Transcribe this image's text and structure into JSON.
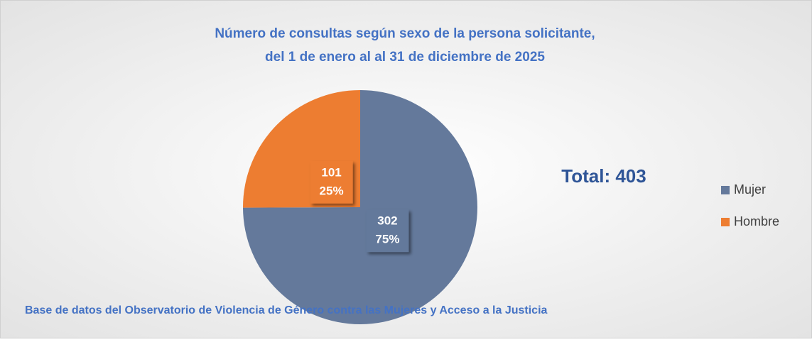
{
  "chart_data": {
    "type": "pie",
    "title": [
      "Número de consultas según sexo de la persona solicitante,",
      "del 1 de enero al al 31 de diciembre de 2025"
    ],
    "categories": [
      "Mujer",
      "Hombre"
    ],
    "values": [
      302,
      101
    ],
    "percentages": [
      75,
      25
    ],
    "percentage_labels": [
      "75%",
      "25%"
    ],
    "colors": [
      "#64799b",
      "#ed7d31"
    ],
    "annotation": "Total: 403",
    "source": "Base de datos del Observatorio de Violencia de Género contra las Mujeres y Acceso a la Justicia",
    "legend": "right"
  }
}
